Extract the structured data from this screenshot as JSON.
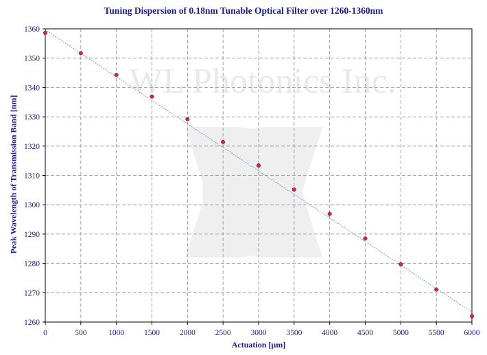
{
  "watermark_text": "WL Photonics Inc.",
  "chart_data": {
    "type": "scatter",
    "title": "Tuning Dispersion of 0.18nm Tunable Optical Filter over 1260-1360nm",
    "xlabel": "Actuation [μm]",
    "ylabel": "Peak Wavelength  of Transmission Band [nm]",
    "xlim": [
      0,
      6000
    ],
    "ylim": [
      1260,
      1360
    ],
    "xticks": [
      0,
      500,
      1000,
      1500,
      2000,
      2500,
      3000,
      3500,
      4000,
      4500,
      5000,
      5500,
      6000
    ],
    "yticks": [
      1260,
      1270,
      1280,
      1290,
      1300,
      1310,
      1320,
      1330,
      1340,
      1350,
      1360
    ],
    "grid": true,
    "series": [
      {
        "x": [
          0,
          500,
          1000,
          1500,
          2000,
          2500,
          3000,
          3500,
          4000,
          4500,
          5000,
          5500,
          6000
        ],
        "y": [
          1358.6,
          1351.7,
          1344.3,
          1336.9,
          1329.2,
          1321.4,
          1313.4,
          1305.2,
          1296.9,
          1288.5,
          1279.7,
          1271.1,
          1262.0
        ],
        "marker_color": "#c8284a"
      }
    ],
    "trendline": {
      "x": [
        0,
        6000
      ],
      "y": [
        1359.7,
        1263.4
      ],
      "color": "#4a7fd0",
      "style": "dotted"
    }
  }
}
